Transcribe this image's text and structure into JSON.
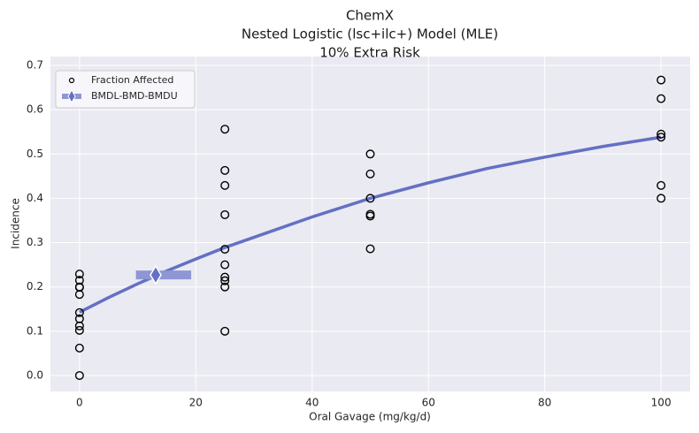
{
  "chart_data": {
    "type": "scatter",
    "title": [
      "ChemX",
      "Nested Logistic (lsc+ilc+) Model (MLE)",
      "10% Extra Risk"
    ],
    "x_label": "Oral Gavage (mg/kg/d)",
    "y_label": "Incidence",
    "xlim": [
      -5,
      105
    ],
    "ylim": [
      -0.036,
      0.72
    ],
    "xticks": [
      0,
      20,
      40,
      60,
      80,
      100
    ],
    "yticks": [
      {
        "value": 0,
        "label": "0.0"
      },
      0.1,
      0.2,
      0.3,
      0.4,
      0.5,
      0.6,
      0.7
    ],
    "grid": true,
    "legend": "upper left",
    "series": [
      {
        "name": "Fraction Affected",
        "color": "#000000",
        "x": [
          0,
          0,
          0,
          0,
          0,
          0,
          0,
          0,
          0,
          0,
          0,
          25,
          25,
          25,
          25,
          25,
          25,
          25,
          25,
          25,
          25,
          50,
          50,
          50,
          50,
          50,
          50,
          100,
          100,
          100,
          100,
          100,
          100
        ],
        "values": [
          0.229,
          0.215,
          0.199,
          0.183,
          0.142,
          0.128,
          0.112,
          0.102,
          0.062,
          0.0,
          0.2,
          0.556,
          0.463,
          0.429,
          0.363,
          0.285,
          0.25,
          0.222,
          0.214,
          0.2,
          0.1,
          0.5,
          0.455,
          0.4,
          0.364,
          0.36,
          0.286,
          0.667,
          0.625,
          0.545,
          0.538,
          0.429,
          0.4
        ]
      }
    ],
    "curve": {
      "color": "#6470c3",
      "x": [
        0,
        5,
        10,
        15,
        20,
        25,
        30,
        40,
        50,
        60,
        70,
        80,
        90,
        100
      ],
      "values": [
        0.143,
        0.176,
        0.207,
        0.236,
        0.263,
        0.289,
        0.312,
        0.358,
        0.4,
        0.435,
        0.467,
        0.493,
        0.517,
        0.538
      ]
    },
    "bmd": {
      "name": "BMDL-BMD-BMDU",
      "color": "#8e96d4",
      "marker_color": "#6470c3",
      "bmdl": 9.7,
      "bmd": 13.1,
      "bmdu": 19.2,
      "value": 0.227
    }
  }
}
